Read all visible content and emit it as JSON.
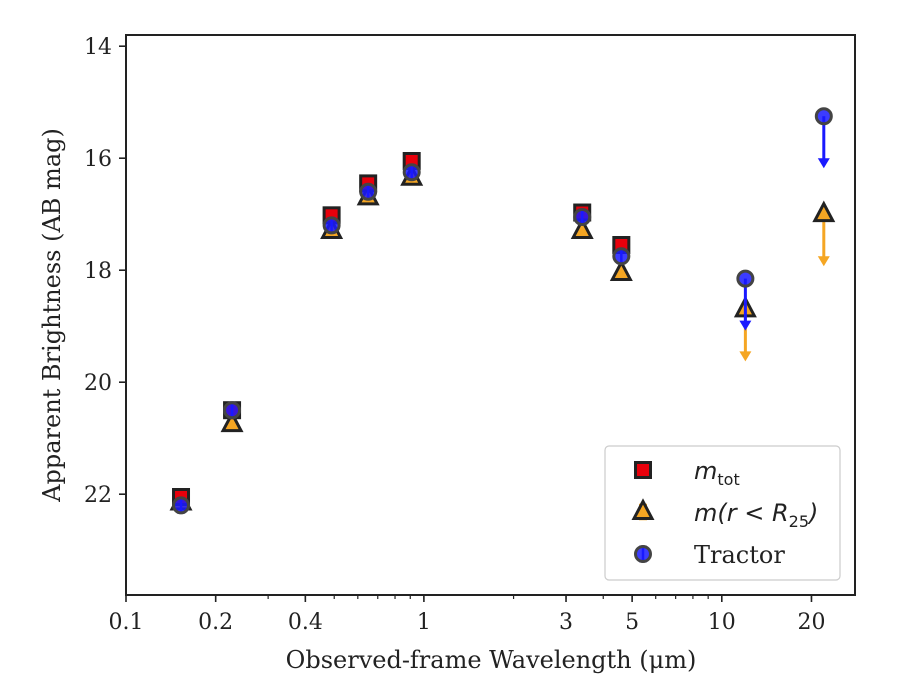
{
  "chart_data": {
    "type": "scatter",
    "xlabel": "Observed-frame Wavelength (μm)",
    "ylabel": "Apparent Brightness (AB mag)",
    "x_scale": "log",
    "xlim": [
      0.1,
      28
    ],
    "ylim": [
      23.8,
      13.8
    ],
    "y_inverted": true,
    "x_ticks": [
      {
        "value": 0.1,
        "label": "0.1"
      },
      {
        "value": 0.2,
        "label": "0.2"
      },
      {
        "value": 0.4,
        "label": "0.4"
      },
      {
        "value": 1,
        "label": "1"
      },
      {
        "value": 3,
        "label": "3"
      },
      {
        "value": 5,
        "label": "5"
      },
      {
        "value": 10,
        "label": "10"
      },
      {
        "value": 20,
        "label": "20"
      }
    ],
    "y_ticks": [
      {
        "value": 14,
        "label": "14"
      },
      {
        "value": 16,
        "label": "16"
      },
      {
        "value": 18,
        "label": "18"
      },
      {
        "value": 20,
        "label": "20"
      },
      {
        "value": 22,
        "label": "22"
      }
    ],
    "grid": false,
    "legend_position": "lower-right",
    "series": [
      {
        "name": "m_tot",
        "marker": "square",
        "color": "#e8000b",
        "points": [
          {
            "x": 0.153,
            "y": 22.05
          },
          {
            "x": 0.227,
            "y": 20.5
          },
          {
            "x": 0.49,
            "y": 17.02
          },
          {
            "x": 0.65,
            "y": 16.45
          },
          {
            "x": 0.91,
            "y": 16.05
          },
          {
            "x": 3.4,
            "y": 16.97
          },
          {
            "x": 4.6,
            "y": 17.55
          }
        ],
        "upper_limits": []
      },
      {
        "name": "m(r<R_25)",
        "marker": "triangle",
        "color": "#f5a623",
        "points": [
          {
            "x": 0.153,
            "y": 22.15
          },
          {
            "x": 0.227,
            "y": 20.75
          },
          {
            "x": 0.49,
            "y": 17.3
          },
          {
            "x": 0.65,
            "y": 16.7
          },
          {
            "x": 0.91,
            "y": 16.35
          },
          {
            "x": 3.4,
            "y": 17.3
          },
          {
            "x": 4.6,
            "y": 18.05
          }
        ],
        "upper_limits": [
          {
            "x": 12.0,
            "y": 18.7
          },
          {
            "x": 22.0,
            "y": 17.0
          }
        ]
      },
      {
        "name": "Tractor",
        "marker": "circle",
        "color": "#1a1aff",
        "points": [
          {
            "x": 0.153,
            "y": 22.2
          },
          {
            "x": 0.227,
            "y": 20.5
          },
          {
            "x": 0.49,
            "y": 17.2
          },
          {
            "x": 0.65,
            "y": 16.6
          },
          {
            "x": 0.91,
            "y": 16.25
          },
          {
            "x": 3.4,
            "y": 17.05
          },
          {
            "x": 4.6,
            "y": 17.75
          }
        ],
        "upper_limits": [
          {
            "x": 12.0,
            "y": 18.15
          },
          {
            "x": 22.0,
            "y": 15.25
          }
        ]
      }
    ],
    "legend": [
      {
        "series": "m_tot",
        "label_main": "m",
        "label_sub": "tot",
        "label_tail": ""
      },
      {
        "series": "m(r<R_25)",
        "label_main": "m(r < R",
        "label_sub": "25",
        "label_tail": ")"
      },
      {
        "series": "Tractor",
        "label_main": "Tractor",
        "label_sub": "",
        "label_tail": ""
      }
    ]
  }
}
